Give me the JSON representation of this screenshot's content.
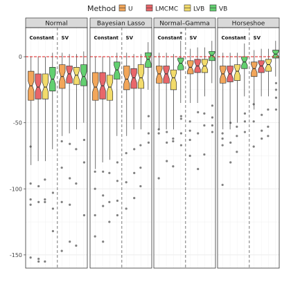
{
  "chart_data": {
    "type": "boxplot",
    "legend": {
      "title": "Method",
      "placement": "top",
      "entries": [
        {
          "name": "U",
          "color": "#F2A65A"
        },
        {
          "name": "LMCMC",
          "color": "#E8666A"
        },
        {
          "name": "LVB",
          "color": "#F2DB6B"
        },
        {
          "name": "VB",
          "color": "#63D070"
        }
      ]
    },
    "ylim": [
      -160,
      22
    ],
    "y_ticks": [
      0,
      -50,
      -100,
      -150
    ],
    "y_tick_labels": [
      "0",
      "-50",
      "-100",
      "-150"
    ],
    "reference_line": 0,
    "reference_line_color": "#E03030",
    "grid": true,
    "group_labels": [
      "Constant",
      "SV"
    ],
    "panels": [
      {
        "title": "Normal",
        "boxes": [
          {
            "group": "Constant",
            "method": "U",
            "whisker_low": -82,
            "q1": -33,
            "median": -22,
            "q3": -11,
            "whisker_high": 0
          },
          {
            "group": "Constant",
            "method": "LMCMC",
            "whisker_low": -79,
            "q1": -32,
            "median": -23,
            "q3": -13,
            "whisker_high": 0
          },
          {
            "group": "Constant",
            "method": "LVB",
            "whisker_low": -79,
            "q1": -32,
            "median": -23,
            "q3": -13,
            "whisker_high": 0
          },
          {
            "group": "Constant",
            "method": "VB",
            "whisker_low": -70,
            "q1": -26,
            "median": -17,
            "q3": -8,
            "whisker_high": 3
          },
          {
            "group": "SV",
            "method": "U",
            "whisker_low": -60,
            "q1": -24,
            "median": -15,
            "q3": -6,
            "whisker_high": 3
          },
          {
            "group": "SV",
            "method": "LMCMC",
            "whisker_low": -58,
            "q1": -20,
            "median": -13,
            "q3": -7,
            "whisker_high": 2
          },
          {
            "group": "SV",
            "method": "LVB",
            "whisker_low": -55,
            "q1": -21,
            "median": -14,
            "q3": -8,
            "whisker_high": 2
          },
          {
            "group": "SV",
            "method": "VB",
            "whisker_low": -50,
            "q1": -22,
            "median": -15,
            "q3": -6,
            "whisker_high": 4
          }
        ],
        "outliers": [
          [
            0,
            -68
          ],
          [
            0,
            -96
          ],
          [
            0,
            -108
          ],
          [
            0,
            -112
          ],
          [
            0,
            -152
          ],
          [
            1,
            -98
          ],
          [
            1,
            -110
          ],
          [
            1,
            -153
          ],
          [
            1,
            -155
          ],
          [
            2,
            -93
          ],
          [
            2,
            -108
          ],
          [
            2,
            -110
          ],
          [
            2,
            -155
          ],
          [
            3,
            -103
          ],
          [
            3,
            -115
          ],
          [
            3,
            -132
          ],
          [
            4,
            -64
          ],
          [
            4,
            -84
          ],
          [
            4,
            -110
          ],
          [
            4,
            -147
          ],
          [
            5,
            -66
          ],
          [
            5,
            -92
          ],
          [
            5,
            -112
          ],
          [
            5,
            -140
          ],
          [
            6,
            -70
          ],
          [
            6,
            -96
          ],
          [
            6,
            -143
          ],
          [
            7,
            -63
          ],
          [
            7,
            -80
          ],
          [
            7,
            -120
          ]
        ]
      },
      {
        "title": "Bayesian Lasso",
        "boxes": [
          {
            "group": "Constant",
            "method": "U",
            "whisker_low": -85,
            "q1": -33,
            "median": -23,
            "q3": -12,
            "whisker_high": 0
          },
          {
            "group": "Constant",
            "method": "LMCMC",
            "whisker_low": -80,
            "q1": -32,
            "median": -22,
            "q3": -12,
            "whisker_high": 0
          },
          {
            "group": "Constant",
            "method": "LVB",
            "whisker_low": -78,
            "q1": -33,
            "median": -23,
            "q3": -14,
            "whisker_high": 0
          },
          {
            "group": "Constant",
            "method": "VB",
            "whisker_low": -60,
            "q1": -17,
            "median": -10,
            "q3": -4,
            "whisker_high": 3
          },
          {
            "group": "SV",
            "method": "U",
            "whisker_low": -60,
            "q1": -25,
            "median": -17,
            "q3": -7,
            "whisker_high": 3
          },
          {
            "group": "SV",
            "method": "LMCMC",
            "whisker_low": -55,
            "q1": -24,
            "median": -16,
            "q3": -9,
            "whisker_high": 2
          },
          {
            "group": "SV",
            "method": "LVB",
            "whisker_low": -55,
            "q1": -24,
            "median": -16,
            "q3": -6,
            "whisker_high": 2
          },
          {
            "group": "SV",
            "method": "VB",
            "whisker_low": -25,
            "q1": -8,
            "median": -2,
            "q3": 3,
            "whisker_high": 11
          }
        ],
        "outliers": [
          [
            0,
            -87
          ],
          [
            0,
            -100
          ],
          [
            0,
            -120
          ],
          [
            0,
            -136
          ],
          [
            1,
            -87
          ],
          [
            1,
            -105
          ],
          [
            1,
            -113
          ],
          [
            1,
            -140
          ],
          [
            2,
            -88
          ],
          [
            2,
            -110
          ],
          [
            2,
            -125
          ],
          [
            3,
            -80
          ],
          [
            3,
            -94
          ],
          [
            3,
            -109
          ],
          [
            3,
            -120
          ],
          [
            4,
            -73
          ],
          [
            4,
            -95
          ],
          [
            4,
            -115
          ],
          [
            5,
            -70
          ],
          [
            5,
            -88
          ],
          [
            5,
            -107
          ],
          [
            6,
            -67
          ],
          [
            6,
            -84
          ],
          [
            6,
            -98
          ],
          [
            7,
            -45
          ],
          [
            7,
            -58
          ],
          [
            7,
            -65
          ]
        ]
      },
      {
        "title": "Normal–Gamma",
        "boxes": [
          {
            "group": "Constant",
            "method": "U",
            "whisker_low": -55,
            "q1": -20,
            "median": -13,
            "q3": -7,
            "whisker_high": 3
          },
          {
            "group": "Constant",
            "method": "LMCMC",
            "whisker_low": -55,
            "q1": -20,
            "median": -13,
            "q3": -7,
            "whisker_high": 3
          },
          {
            "group": "Constant",
            "method": "LVB",
            "whisker_low": -55,
            "q1": -25,
            "median": -16,
            "q3": -10,
            "whisker_high": 2
          },
          {
            "group": "Constant",
            "method": "VB",
            "whisker_low": -35,
            "q1": -10,
            "median": -5,
            "q3": -1,
            "whisker_high": 12
          },
          {
            "group": "SV",
            "method": "U",
            "whisker_low": -35,
            "q1": -13,
            "median": -8,
            "q3": -3,
            "whisker_high": 6
          },
          {
            "group": "SV",
            "method": "LMCMC",
            "whisker_low": -35,
            "q1": -12,
            "median": -7,
            "q3": -2,
            "whisker_high": 7
          },
          {
            "group": "SV",
            "method": "LVB",
            "whisker_low": -30,
            "q1": -12,
            "median": -7,
            "q3": -2,
            "whisker_high": 7
          },
          {
            "group": "SV",
            "method": "VB",
            "whisker_low": -20,
            "q1": -3,
            "median": 1,
            "q3": 4,
            "whisker_high": 12
          }
        ],
        "outliers": [
          [
            0,
            -55
          ],
          [
            0,
            -58
          ],
          [
            0,
            -92
          ],
          [
            1,
            -57
          ],
          [
            1,
            -65
          ],
          [
            1,
            -79
          ],
          [
            2,
            -62
          ],
          [
            2,
            -64
          ],
          [
            2,
            -83
          ],
          [
            3,
            18
          ],
          [
            3,
            -45
          ],
          [
            3,
            -47
          ],
          [
            3,
            -58
          ],
          [
            3,
            -67
          ],
          [
            4,
            -49
          ],
          [
            4,
            -56
          ],
          [
            4,
            -63
          ],
          [
            4,
            -75
          ],
          [
            5,
            -42
          ],
          [
            5,
            -58
          ],
          [
            5,
            -85
          ],
          [
            6,
            -43
          ],
          [
            6,
            -52
          ],
          [
            6,
            -74
          ],
          [
            7,
            -37
          ],
          [
            7,
            -46
          ],
          [
            7,
            -52
          ],
          [
            7,
            -57
          ]
        ]
      },
      {
        "title": "Horseshoe",
        "boxes": [
          {
            "group": "Constant",
            "method": "U",
            "whisker_low": -55,
            "q1": -20,
            "median": -13,
            "q3": -7,
            "whisker_high": 3
          },
          {
            "group": "Constant",
            "method": "LMCMC",
            "whisker_low": -55,
            "q1": -19,
            "median": -13,
            "q3": -7,
            "whisker_high": 3
          },
          {
            "group": "Constant",
            "method": "LVB",
            "whisker_low": -50,
            "q1": -18,
            "median": -11,
            "q3": -6,
            "whisker_high": 3
          },
          {
            "group": "Constant",
            "method": "VB",
            "whisker_low": -30,
            "q1": -9,
            "median": -4,
            "q3": 0,
            "whisker_high": 10
          },
          {
            "group": "SV",
            "method": "U",
            "whisker_low": -40,
            "q1": -15,
            "median": -9,
            "q3": -4,
            "whisker_high": 5
          },
          {
            "group": "SV",
            "method": "LMCMC",
            "whisker_low": -30,
            "q1": -12,
            "median": -7,
            "q3": -3,
            "whisker_high": 6
          },
          {
            "group": "SV",
            "method": "LVB",
            "whisker_low": -30,
            "q1": -11,
            "median": -6,
            "q3": -2,
            "whisker_high": 6
          },
          {
            "group": "SV",
            "method": "VB",
            "whisker_low": -15,
            "q1": -1,
            "median": 2,
            "q3": 5,
            "whisker_high": 12
          }
        ],
        "outliers": [
          [
            0,
            -58
          ],
          [
            0,
            -62
          ],
          [
            0,
            -67
          ],
          [
            0,
            -97
          ],
          [
            1,
            -50
          ],
          [
            1,
            -65
          ],
          [
            1,
            -80
          ],
          [
            2,
            -53
          ],
          [
            2,
            -60
          ],
          [
            2,
            -72
          ],
          [
            3,
            -43
          ],
          [
            3,
            -49
          ],
          [
            3,
            -57
          ],
          [
            4,
            -36
          ],
          [
            4,
            -49
          ],
          [
            4,
            -68
          ],
          [
            5,
            -44
          ],
          [
            5,
            -56
          ],
          [
            5,
            -62
          ],
          [
            6,
            -40
          ],
          [
            6,
            -53
          ],
          [
            6,
            -60
          ],
          [
            7,
            -20
          ],
          [
            7,
            -25
          ],
          [
            7,
            -31
          ],
          [
            7,
            -40
          ]
        ]
      }
    ]
  }
}
